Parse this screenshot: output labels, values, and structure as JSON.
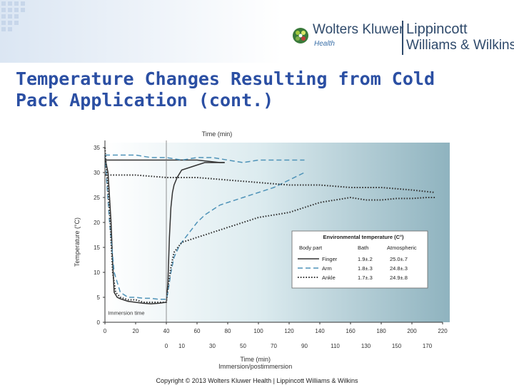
{
  "header": {
    "publisher": "Wolters Kluwer",
    "division": "Health",
    "imprint_line1": "Lippincott",
    "imprint_line2": "Williams & Wilkins"
  },
  "slide": {
    "title": "Temperature Changes Resulting from Cold Pack Application (cont.)",
    "copyright": "Copyright © 2013 Wolters Kluwer Health | Lippincott Williams & Wilkins"
  },
  "colors": {
    "title": "#2b4fa3",
    "finger": "#333333",
    "arm": "#4f93b8",
    "ankle": "#333333",
    "plot_bg_left": "#ffffff",
    "plot_bg_right": "#8fb3bf"
  },
  "chart_data": {
    "type": "line",
    "title": "",
    "top_axis_label": "Time (min)",
    "xlabel": "Time (min)",
    "xlabel2": "Immersion/postimmersion",
    "ylabel": "Temperature (°C)",
    "xlim": [
      0,
      220
    ],
    "ylim": [
      0,
      35
    ],
    "x_ticks": [
      0,
      20,
      40,
      60,
      80,
      100,
      120,
      140,
      160,
      180,
      200,
      220
    ],
    "x2_ticks": [
      {
        "at": 40,
        "label": "0"
      },
      {
        "at": 50,
        "label": "10"
      },
      {
        "at": 70,
        "label": "30"
      },
      {
        "at": 90,
        "label": "50"
      },
      {
        "at": 110,
        "label": "70"
      },
      {
        "at": 130,
        "label": "90"
      },
      {
        "at": 150,
        "label": "110"
      },
      {
        "at": 170,
        "label": "130"
      },
      {
        "at": 190,
        "label": "150"
      },
      {
        "at": 210,
        "label": "170"
      }
    ],
    "y_ticks": [
      0,
      5,
      10,
      15,
      20,
      25,
      30,
      35
    ],
    "annotation": {
      "text": "Immersion time",
      "x": 2,
      "y": 1.5
    },
    "immersion_end": 40,
    "legend": {
      "title": "Environmental temperature (C°)",
      "headers": [
        "Body part",
        "Bath",
        "Atmospheric"
      ],
      "rows": [
        {
          "series": "Finger",
          "label": "Finger",
          "bath": "1.9±.2",
          "atmospheric": "25.0±.7"
        },
        {
          "series": "Arm",
          "label": "Arm",
          "bath": "1.8±.3",
          "atmospheric": "24.8±.3"
        },
        {
          "series": "Ankle",
          "label": "Ankle",
          "bath": "1.7±.3",
          "atmospheric": "24.9±.8"
        }
      ]
    },
    "series": [
      {
        "name": "Finger",
        "style": "solid",
        "x": [
          0,
          2,
          4,
          5,
          6,
          8,
          10,
          15,
          20,
          25,
          30,
          35,
          40,
          41,
          42,
          43,
          44,
          45,
          47,
          50,
          55,
          60,
          65,
          70,
          78
        ],
        "y": [
          33,
          30,
          20,
          12,
          6,
          5,
          4.7,
          4.2,
          4,
          3.8,
          3.7,
          3.8,
          4,
          8,
          17,
          23,
          26,
          27.5,
          29,
          30.5,
          31,
          31.5,
          32,
          32,
          32
        ],
        "x2": [
          0,
          20,
          40,
          60,
          75,
          78
        ],
        "y2": [
          32.5,
          32.5,
          32.5,
          32.5,
          32,
          32
        ]
      },
      {
        "name": "Arm",
        "style": "dashed",
        "x": [
          0,
          3,
          6,
          10,
          15,
          20,
          25,
          30,
          35,
          40,
          41,
          43,
          45,
          48,
          50,
          55,
          60,
          65,
          70,
          75,
          80,
          90,
          100,
          110,
          120,
          130
        ],
        "y": [
          33.5,
          20,
          10,
          6,
          5,
          5,
          4.8,
          4.8,
          4.6,
          4.6,
          6,
          10,
          13,
          15,
          16,
          18,
          20,
          21.5,
          22.5,
          23.5,
          24,
          25,
          26,
          27,
          28.5,
          30
        ],
        "x2": [
          0,
          10,
          20,
          30,
          40,
          50,
          60,
          70,
          80,
          90,
          100,
          110,
          120,
          130
        ],
        "y2": [
          33.5,
          33.5,
          33.5,
          33,
          33,
          32.5,
          33,
          33,
          32.5,
          32,
          32.5,
          32.5,
          32.5,
          32.5
        ]
      },
      {
        "name": "Ankle",
        "style": "dotted",
        "x": [
          0,
          3,
          5,
          7,
          10,
          15,
          20,
          25,
          30,
          35,
          40,
          41,
          43,
          45,
          50,
          55,
          60,
          70,
          80,
          90,
          100,
          110,
          120,
          130,
          140,
          160,
          170,
          180,
          190,
          200,
          210,
          215
        ],
        "y": [
          35,
          22,
          10,
          6,
          5,
          4.5,
          4.5,
          4,
          4,
          4,
          4,
          7,
          11,
          14,
          16,
          16.5,
          17,
          18,
          19,
          20,
          21,
          21.5,
          22,
          23,
          24,
          25,
          24.5,
          24.5,
          24.8,
          24.8,
          25,
          25
        ],
        "x2": [
          0,
          20,
          40,
          60,
          80,
          100,
          120,
          140,
          160,
          180,
          200,
          215
        ],
        "y2": [
          29.5,
          29.5,
          29,
          29,
          28.5,
          28,
          27.5,
          27.5,
          27,
          27,
          26.5,
          26
        ]
      }
    ]
  }
}
